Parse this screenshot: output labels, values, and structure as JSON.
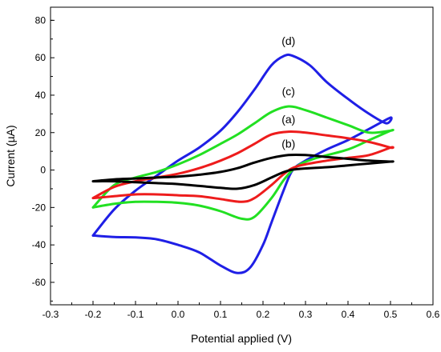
{
  "chart_data": {
    "type": "line",
    "xlabel": "Potential applied (V)",
    "ylabel": "Current (µA)",
    "xlim": [
      -0.3,
      0.6
    ],
    "ylim": [
      -72,
      87
    ],
    "x_ticks": [
      -0.3,
      -0.2,
      -0.1,
      0.0,
      0.1,
      0.2,
      0.3,
      0.4,
      0.5,
      0.6
    ],
    "x_tick_labels": [
      "-0.3",
      "-0.2",
      "-0.1",
      "0.0",
      "0.1",
      "0.2",
      "0.3",
      "0.4",
      "0.5",
      "0.6"
    ],
    "y_ticks": [
      -60,
      -40,
      -20,
      0,
      20,
      40,
      60,
      80
    ],
    "y_tick_labels": [
      "-60",
      "-40",
      "-20",
      "0",
      "20",
      "40",
      "60",
      "80"
    ],
    "grid": false,
    "series": [
      {
        "name": "(d)",
        "color": "#1f1fe6",
        "label_pos": [
          0.26,
          67
        ],
        "points": [
          [
            -0.2,
            -35
          ],
          [
            -0.15,
            -35.8
          ],
          [
            -0.1,
            -36
          ],
          [
            -0.05,
            -37
          ],
          [
            0.0,
            -40
          ],
          [
            0.05,
            -44
          ],
          [
            0.1,
            -51
          ],
          [
            0.14,
            -55
          ],
          [
            0.17,
            -52
          ],
          [
            0.2,
            -40
          ],
          [
            0.22,
            -28
          ],
          [
            0.25,
            -10
          ],
          [
            0.27,
            0
          ],
          [
            0.3,
            5
          ],
          [
            0.35,
            11
          ],
          [
            0.4,
            16
          ],
          [
            0.45,
            22
          ],
          [
            0.5,
            28
          ],
          [
            0.49,
            25
          ],
          [
            0.45,
            30
          ],
          [
            0.4,
            38
          ],
          [
            0.35,
            47
          ],
          [
            0.31,
            56
          ],
          [
            0.27,
            61
          ],
          [
            0.25,
            61
          ],
          [
            0.22,
            56
          ],
          [
            0.18,
            43
          ],
          [
            0.14,
            31
          ],
          [
            0.1,
            21
          ],
          [
            0.05,
            12
          ],
          [
            0.0,
            5
          ],
          [
            -0.05,
            -3
          ],
          [
            -0.1,
            -11
          ],
          [
            -0.15,
            -21
          ],
          [
            -0.2,
            -35
          ]
        ]
      },
      {
        "name": "(c)",
        "color": "#22e022",
        "label_pos": [
          0.26,
          40
        ],
        "points": [
          [
            -0.2,
            -20
          ],
          [
            -0.15,
            -18
          ],
          [
            -0.1,
            -17
          ],
          [
            -0.05,
            -17
          ],
          [
            0.0,
            -17.5
          ],
          [
            0.05,
            -19
          ],
          [
            0.1,
            -22
          ],
          [
            0.15,
            -26
          ],
          [
            0.18,
            -25
          ],
          [
            0.22,
            -15
          ],
          [
            0.25,
            -5
          ],
          [
            0.28,
            2
          ],
          [
            0.32,
            6
          ],
          [
            0.4,
            11
          ],
          [
            0.45,
            16
          ],
          [
            0.5,
            21
          ],
          [
            0.5,
            21
          ],
          [
            0.45,
            20
          ],
          [
            0.4,
            24
          ],
          [
            0.35,
            28
          ],
          [
            0.3,
            32
          ],
          [
            0.26,
            34
          ],
          [
            0.22,
            31
          ],
          [
            0.18,
            25
          ],
          [
            0.14,
            19
          ],
          [
            0.1,
            14
          ],
          [
            0.05,
            8
          ],
          [
            0.0,
            3
          ],
          [
            -0.05,
            -1
          ],
          [
            -0.1,
            -4
          ],
          [
            -0.15,
            -8
          ],
          [
            -0.2,
            -20
          ]
        ]
      },
      {
        "name": "(a)",
        "color": "#ee1c1c",
        "label_pos": [
          0.26,
          25
        ],
        "points": [
          [
            -0.2,
            -15
          ],
          [
            -0.15,
            -14
          ],
          [
            -0.1,
            -13
          ],
          [
            -0.05,
            -13
          ],
          [
            0.0,
            -13.5
          ],
          [
            0.05,
            -14
          ],
          [
            0.1,
            -15.5
          ],
          [
            0.15,
            -17
          ],
          [
            0.18,
            -15
          ],
          [
            0.22,
            -8
          ],
          [
            0.25,
            -2
          ],
          [
            0.28,
            2
          ],
          [
            0.35,
            5
          ],
          [
            0.4,
            6.5
          ],
          [
            0.45,
            8
          ],
          [
            0.5,
            12
          ],
          [
            0.5,
            12
          ],
          [
            0.45,
            15
          ],
          [
            0.4,
            17
          ],
          [
            0.35,
            18.5
          ],
          [
            0.3,
            20
          ],
          [
            0.26,
            20.5
          ],
          [
            0.22,
            19
          ],
          [
            0.18,
            14
          ],
          [
            0.14,
            9
          ],
          [
            0.1,
            5
          ],
          [
            0.05,
            1
          ],
          [
            0.0,
            -2
          ],
          [
            -0.05,
            -4
          ],
          [
            -0.1,
            -6
          ],
          [
            -0.15,
            -9
          ],
          [
            -0.2,
            -15
          ]
        ]
      },
      {
        "name": "(b)",
        "color": "#000000",
        "label_pos": [
          0.26,
          12
        ],
        "points": [
          [
            -0.2,
            -6
          ],
          [
            -0.15,
            -6
          ],
          [
            -0.1,
            -6.5
          ],
          [
            -0.05,
            -7
          ],
          [
            0.0,
            -7.5
          ],
          [
            0.05,
            -8.5
          ],
          [
            0.1,
            -9.5
          ],
          [
            0.14,
            -10
          ],
          [
            0.18,
            -8
          ],
          [
            0.22,
            -4
          ],
          [
            0.25,
            -1
          ],
          [
            0.28,
            0.5
          ],
          [
            0.35,
            1.5
          ],
          [
            0.4,
            2.5
          ],
          [
            0.45,
            3.5
          ],
          [
            0.5,
            4.5
          ],
          [
            0.5,
            4.5
          ],
          [
            0.45,
            5
          ],
          [
            0.4,
            6
          ],
          [
            0.35,
            7
          ],
          [
            0.3,
            8
          ],
          [
            0.26,
            8
          ],
          [
            0.22,
            6.5
          ],
          [
            0.18,
            4
          ],
          [
            0.14,
            1
          ],
          [
            0.1,
            -1
          ],
          [
            0.05,
            -2.5
          ],
          [
            0.0,
            -3.5
          ],
          [
            -0.05,
            -4
          ],
          [
            -0.1,
            -4.5
          ],
          [
            -0.15,
            -5
          ],
          [
            -0.2,
            -6
          ]
        ]
      }
    ]
  }
}
